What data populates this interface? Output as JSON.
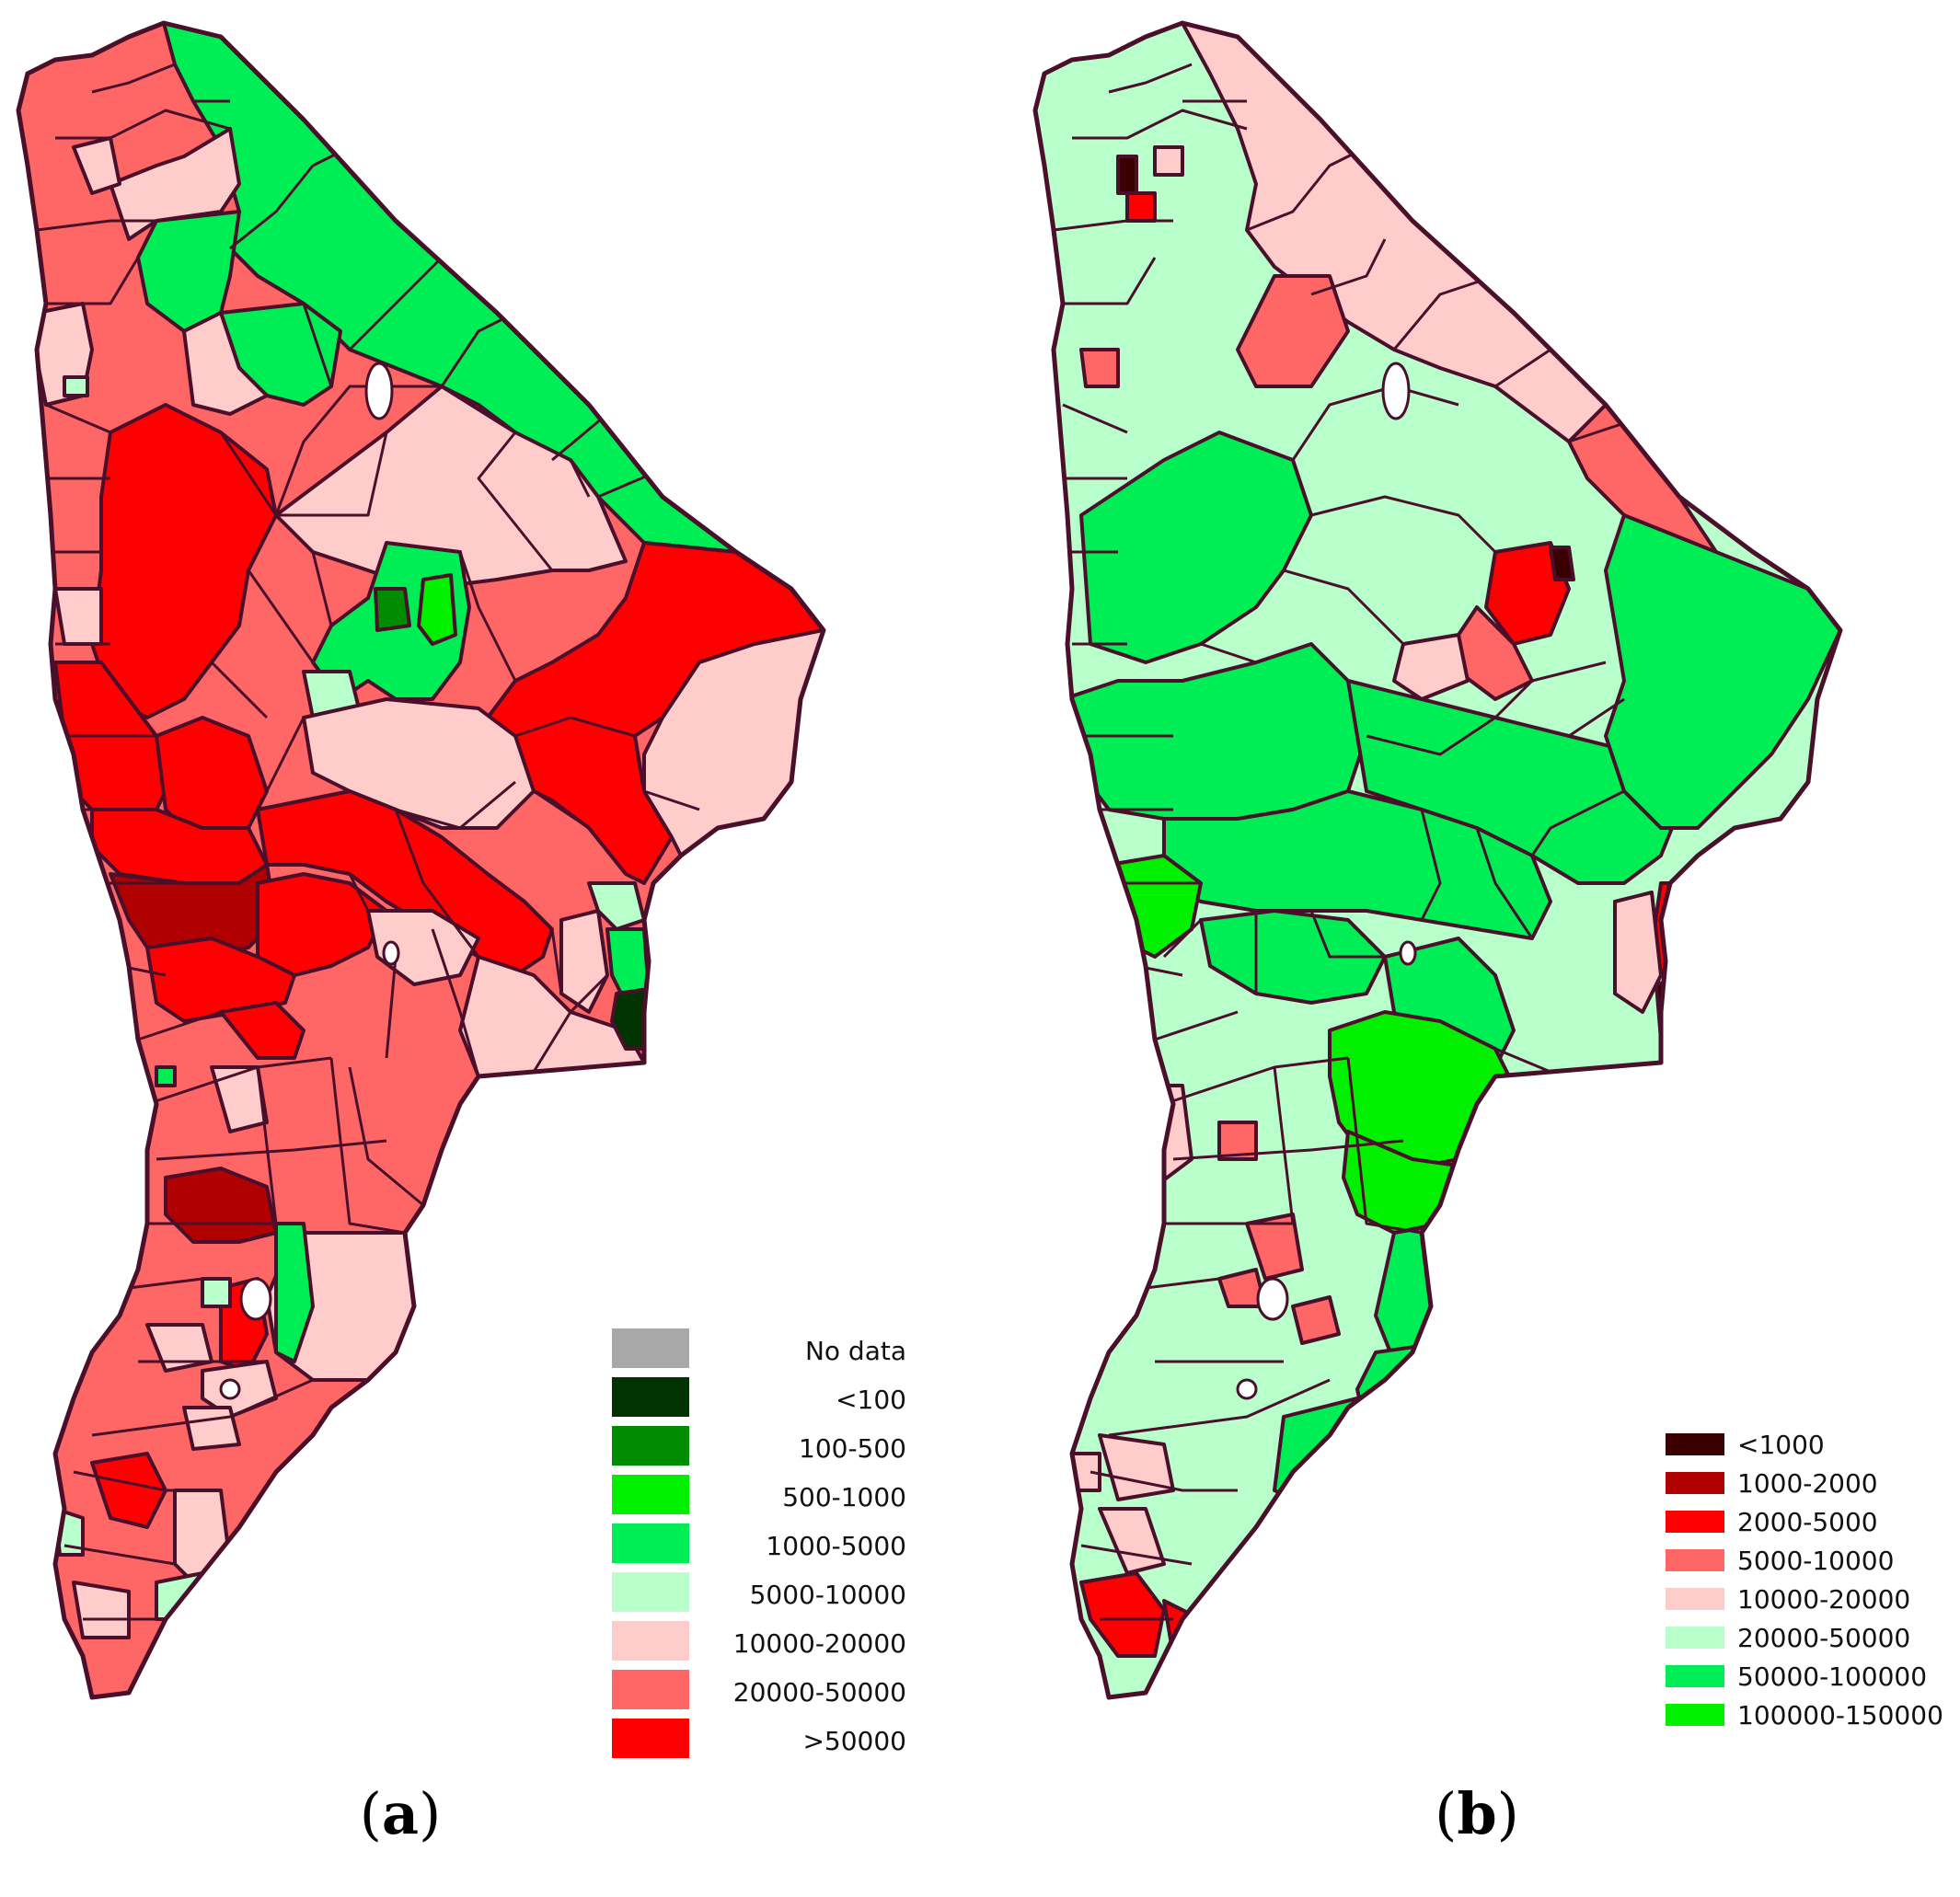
{
  "panels": [
    {
      "caption_open": "(",
      "caption_letter": "a",
      "caption_close": ")",
      "legend": [
        {
          "label": "No data",
          "color": "#a8a8a8"
        },
        {
          "label": "<100",
          "color": "#003300"
        },
        {
          "label": "100-500",
          "color": "#008c00"
        },
        {
          "label": "500-1000",
          "color": "#00f000"
        },
        {
          "label": "1000-5000",
          "color": "#00ee55"
        },
        {
          "label": "5000-10000",
          "color": "#b8ffcc"
        },
        {
          "label": "10000-20000",
          "color": "#ffcccc"
        },
        {
          "label": "20000-50000",
          "color": "#ff6666"
        },
        {
          "label": ">50000",
          "color": "#ff0000"
        }
      ]
    },
    {
      "caption_open": "(",
      "caption_letter": "b",
      "caption_close": ")",
      "legend": [
        {
          "label": "<1000",
          "color": "#3a0000"
        },
        {
          "label": "1000-2000",
          "color": "#b00000"
        },
        {
          "label": "2000-5000",
          "color": "#ff0000"
        },
        {
          "label": "5000-10000",
          "color": "#ff6666"
        },
        {
          "label": "10000-20000",
          "color": "#ffcccc"
        },
        {
          "label": "20000-50000",
          "color": "#b8ffcc"
        },
        {
          "label": "50000-100000",
          "color": "#00ee55"
        },
        {
          "label": "100000-150000",
          "color": "#00f000"
        }
      ]
    }
  ]
}
